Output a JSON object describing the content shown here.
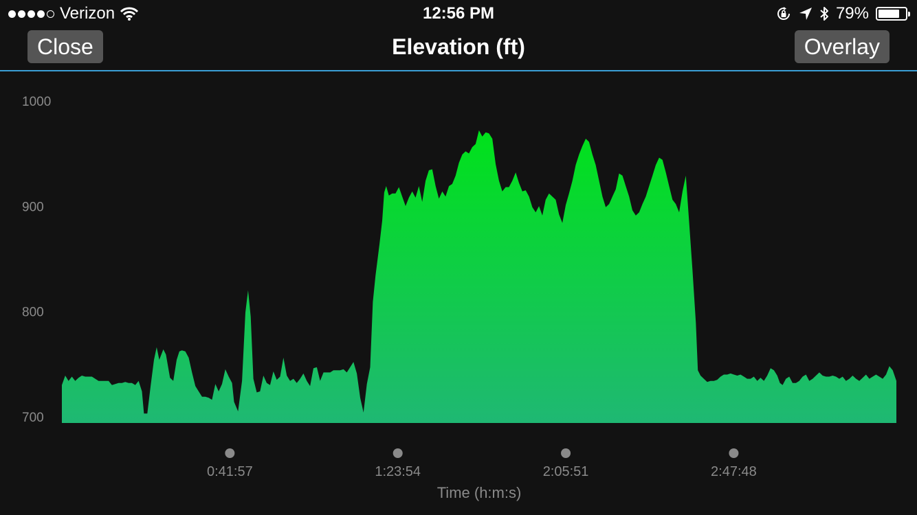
{
  "status_bar": {
    "carrier": "Verizon",
    "signal_dots_filled": 4,
    "signal_dots_total": 5,
    "time": "12:56 PM",
    "battery": "79%",
    "battery_level": 0.79,
    "icons": [
      "wifi-icon",
      "rotation-lock-icon",
      "location-arrow-icon",
      "bluetooth-icon",
      "battery-icon"
    ]
  },
  "nav": {
    "close_label": "Close",
    "title": "Elevation (ft)",
    "overlay_label": "Overlay"
  },
  "colors": {
    "background": "#121212",
    "accent_line": "#3b9fd6",
    "area_top": "#00e21a",
    "area_bottom": "#1fb873",
    "button_bg": "#555555"
  },
  "chart_data": {
    "type": "area",
    "title": "Elevation (ft)",
    "xlabel": "Time (h:m:s)",
    "ylabel": "",
    "ylim": [
      700,
      1000
    ],
    "yticks": [
      1000,
      900,
      800,
      700
    ],
    "xticks": [
      "0:41:57",
      "1:23:54",
      "2:05:51",
      "2:47:48"
    ],
    "xlim_seconds": [
      0,
      12505
    ],
    "xtick_seconds": [
      2517,
      5034,
      7551,
      10068
    ],
    "series": [
      {
        "points": [
          [
            0,
            736
          ],
          [
            50,
            745
          ],
          [
            100,
            740
          ],
          [
            150,
            744
          ],
          [
            200,
            740
          ],
          [
            250,
            743
          ],
          [
            300,
            745
          ],
          [
            350,
            744
          ],
          [
            400,
            744
          ],
          [
            450,
            744
          ],
          [
            500,
            742
          ],
          [
            550,
            740
          ],
          [
            600,
            740
          ],
          [
            650,
            740
          ],
          [
            700,
            740
          ],
          [
            750,
            736
          ],
          [
            800,
            737
          ],
          [
            850,
            738
          ],
          [
            900,
            738
          ],
          [
            950,
            739
          ],
          [
            1000,
            738
          ],
          [
            1050,
            738
          ],
          [
            1100,
            736
          ],
          [
            1150,
            740
          ],
          [
            1200,
            730
          ],
          [
            1230,
            709
          ],
          [
            1280,
            709
          ],
          [
            1330,
            735
          ],
          [
            1380,
            760
          ],
          [
            1420,
            772
          ],
          [
            1460,
            760
          ],
          [
            1520,
            770
          ],
          [
            1560,
            765
          ],
          [
            1620,
            743
          ],
          [
            1670,
            740
          ],
          [
            1720,
            760
          ],
          [
            1760,
            768
          ],
          [
            1800,
            769
          ],
          [
            1850,
            768
          ],
          [
            1900,
            762
          ],
          [
            1950,
            748
          ],
          [
            2000,
            735
          ],
          [
            2050,
            730
          ],
          [
            2100,
            725
          ],
          [
            2150,
            725
          ],
          [
            2200,
            724
          ],
          [
            2250,
            722
          ],
          [
            2300,
            737
          ],
          [
            2350,
            730
          ],
          [
            2400,
            737
          ],
          [
            2450,
            751
          ],
          [
            2500,
            744
          ],
          [
            2550,
            738
          ],
          [
            2580,
            720
          ],
          [
            2640,
            711
          ],
          [
            2700,
            740
          ],
          [
            2750,
            805
          ],
          [
            2790,
            826
          ],
          [
            2830,
            801
          ],
          [
            2870,
            742
          ],
          [
            2920,
            729
          ],
          [
            2970,
            730
          ],
          [
            3020,
            745
          ],
          [
            3070,
            738
          ],
          [
            3120,
            736
          ],
          [
            3170,
            749
          ],
          [
            3220,
            741
          ],
          [
            3270,
            744
          ],
          [
            3320,
            762
          ],
          [
            3370,
            745
          ],
          [
            3420,
            740
          ],
          [
            3470,
            742
          ],
          [
            3520,
            738
          ],
          [
            3570,
            742
          ],
          [
            3620,
            747
          ],
          [
            3670,
            740
          ],
          [
            3720,
            735
          ],
          [
            3770,
            752
          ],
          [
            3820,
            753
          ],
          [
            3870,
            740
          ],
          [
            3920,
            748
          ],
          [
            3970,
            748
          ],
          [
            4020,
            748
          ],
          [
            4070,
            750
          ],
          [
            4120,
            750
          ],
          [
            4170,
            750
          ],
          [
            4220,
            751
          ],
          [
            4270,
            748
          ],
          [
            4320,
            753
          ],
          [
            4370,
            758
          ],
          [
            4420,
            747
          ],
          [
            4470,
            724
          ],
          [
            4520,
            710
          ],
          [
            4570,
            737
          ],
          [
            4620,
            753
          ],
          [
            4660,
            815
          ],
          [
            4700,
            840
          ],
          [
            4760,
            870
          ],
          [
            4800,
            892
          ],
          [
            4830,
            919
          ],
          [
            4860,
            925
          ],
          [
            4900,
            916
          ],
          [
            4950,
            918
          ],
          [
            5000,
            918
          ],
          [
            5050,
            924
          ],
          [
            5100,
            915
          ],
          [
            5150,
            906
          ],
          [
            5200,
            914
          ],
          [
            5250,
            920
          ],
          [
            5300,
            914
          ],
          [
            5350,
            925
          ],
          [
            5400,
            910
          ],
          [
            5450,
            930
          ],
          [
            5500,
            940
          ],
          [
            5550,
            941
          ],
          [
            5600,
            925
          ],
          [
            5650,
            913
          ],
          [
            5700,
            920
          ],
          [
            5750,
            915
          ],
          [
            5800,
            925
          ],
          [
            5850,
            927
          ],
          [
            5900,
            935
          ],
          [
            5950,
            947
          ],
          [
            6000,
            955
          ],
          [
            6050,
            958
          ],
          [
            6100,
            956
          ],
          [
            6150,
            962
          ],
          [
            6200,
            965
          ],
          [
            6250,
            978
          ],
          [
            6300,
            972
          ],
          [
            6350,
            976
          ],
          [
            6400,
            975
          ],
          [
            6450,
            970
          ],
          [
            6500,
            946
          ],
          [
            6550,
            930
          ],
          [
            6600,
            920
          ],
          [
            6650,
            924
          ],
          [
            6700,
            924
          ],
          [
            6750,
            930
          ],
          [
            6800,
            938
          ],
          [
            6850,
            928
          ],
          [
            6900,
            920
          ],
          [
            6950,
            921
          ],
          [
            7000,
            915
          ],
          [
            7050,
            905
          ],
          [
            7100,
            900
          ],
          [
            7150,
            906
          ],
          [
            7200,
            897
          ],
          [
            7250,
            912
          ],
          [
            7300,
            918
          ],
          [
            7350,
            915
          ],
          [
            7400,
            912
          ],
          [
            7450,
            898
          ],
          [
            7500,
            890
          ],
          [
            7550,
            907
          ],
          [
            7600,
            918
          ],
          [
            7650,
            930
          ],
          [
            7700,
            945
          ],
          [
            7750,
            955
          ],
          [
            7800,
            963
          ],
          [
            7850,
            970
          ],
          [
            7900,
            967
          ],
          [
            7950,
            955
          ],
          [
            8000,
            945
          ],
          [
            8050,
            930
          ],
          [
            8100,
            915
          ],
          [
            8150,
            905
          ],
          [
            8200,
            908
          ],
          [
            8250,
            915
          ],
          [
            8300,
            922
          ],
          [
            8350,
            937
          ],
          [
            8400,
            935
          ],
          [
            8450,
            925
          ],
          [
            8500,
            915
          ],
          [
            8550,
            902
          ],
          [
            8600,
            897
          ],
          [
            8650,
            900
          ],
          [
            8700,
            908
          ],
          [
            8750,
            915
          ],
          [
            8800,
            925
          ],
          [
            8850,
            935
          ],
          [
            8900,
            945
          ],
          [
            8950,
            952
          ],
          [
            9000,
            950
          ],
          [
            9050,
            938
          ],
          [
            9100,
            925
          ],
          [
            9150,
            912
          ],
          [
            9200,
            908
          ],
          [
            9250,
            900
          ],
          [
            9300,
            920
          ],
          [
            9350,
            935
          ],
          [
            9400,
            890
          ],
          [
            9450,
            845
          ],
          [
            9500,
            795
          ],
          [
            9530,
            750
          ],
          [
            9570,
            745
          ],
          [
            9620,
            742
          ],
          [
            9670,
            739
          ],
          [
            9720,
            740
          ],
          [
            9770,
            740
          ],
          [
            9820,
            741
          ],
          [
            9870,
            744
          ],
          [
            9920,
            746
          ],
          [
            9970,
            746
          ],
          [
            10020,
            747
          ],
          [
            10070,
            746
          ],
          [
            10120,
            745
          ],
          [
            10170,
            746
          ],
          [
            10220,
            744
          ],
          [
            10270,
            742
          ],
          [
            10320,
            742
          ],
          [
            10370,
            744
          ],
          [
            10420,
            740
          ],
          [
            10470,
            743
          ],
          [
            10520,
            740
          ],
          [
            10570,
            745
          ],
          [
            10620,
            752
          ],
          [
            10670,
            750
          ],
          [
            10720,
            745
          ],
          [
            10760,
            738
          ],
          [
            10800,
            736
          ],
          [
            10850,
            742
          ],
          [
            10900,
            744
          ],
          [
            10950,
            738
          ],
          [
            11000,
            738
          ],
          [
            11050,
            740
          ],
          [
            11100,
            744
          ],
          [
            11150,
            746
          ],
          [
            11200,
            740
          ],
          [
            11250,
            742
          ],
          [
            11300,
            745
          ],
          [
            11350,
            748
          ],
          [
            11400,
            745
          ],
          [
            11450,
            744
          ],
          [
            11500,
            744
          ],
          [
            11550,
            745
          ],
          [
            11600,
            744
          ],
          [
            11650,
            742
          ],
          [
            11700,
            744
          ],
          [
            11750,
            740
          ],
          [
            11800,
            742
          ],
          [
            11850,
            745
          ],
          [
            11900,
            742
          ],
          [
            11950,
            740
          ],
          [
            12000,
            743
          ],
          [
            12050,
            746
          ],
          [
            12100,
            742
          ],
          [
            12150,
            744
          ],
          [
            12200,
            746
          ],
          [
            12250,
            744
          ],
          [
            12300,
            742
          ],
          [
            12350,
            746
          ],
          [
            12400,
            754
          ],
          [
            12450,
            750
          ],
          [
            12505,
            740
          ]
        ]
      }
    ]
  }
}
